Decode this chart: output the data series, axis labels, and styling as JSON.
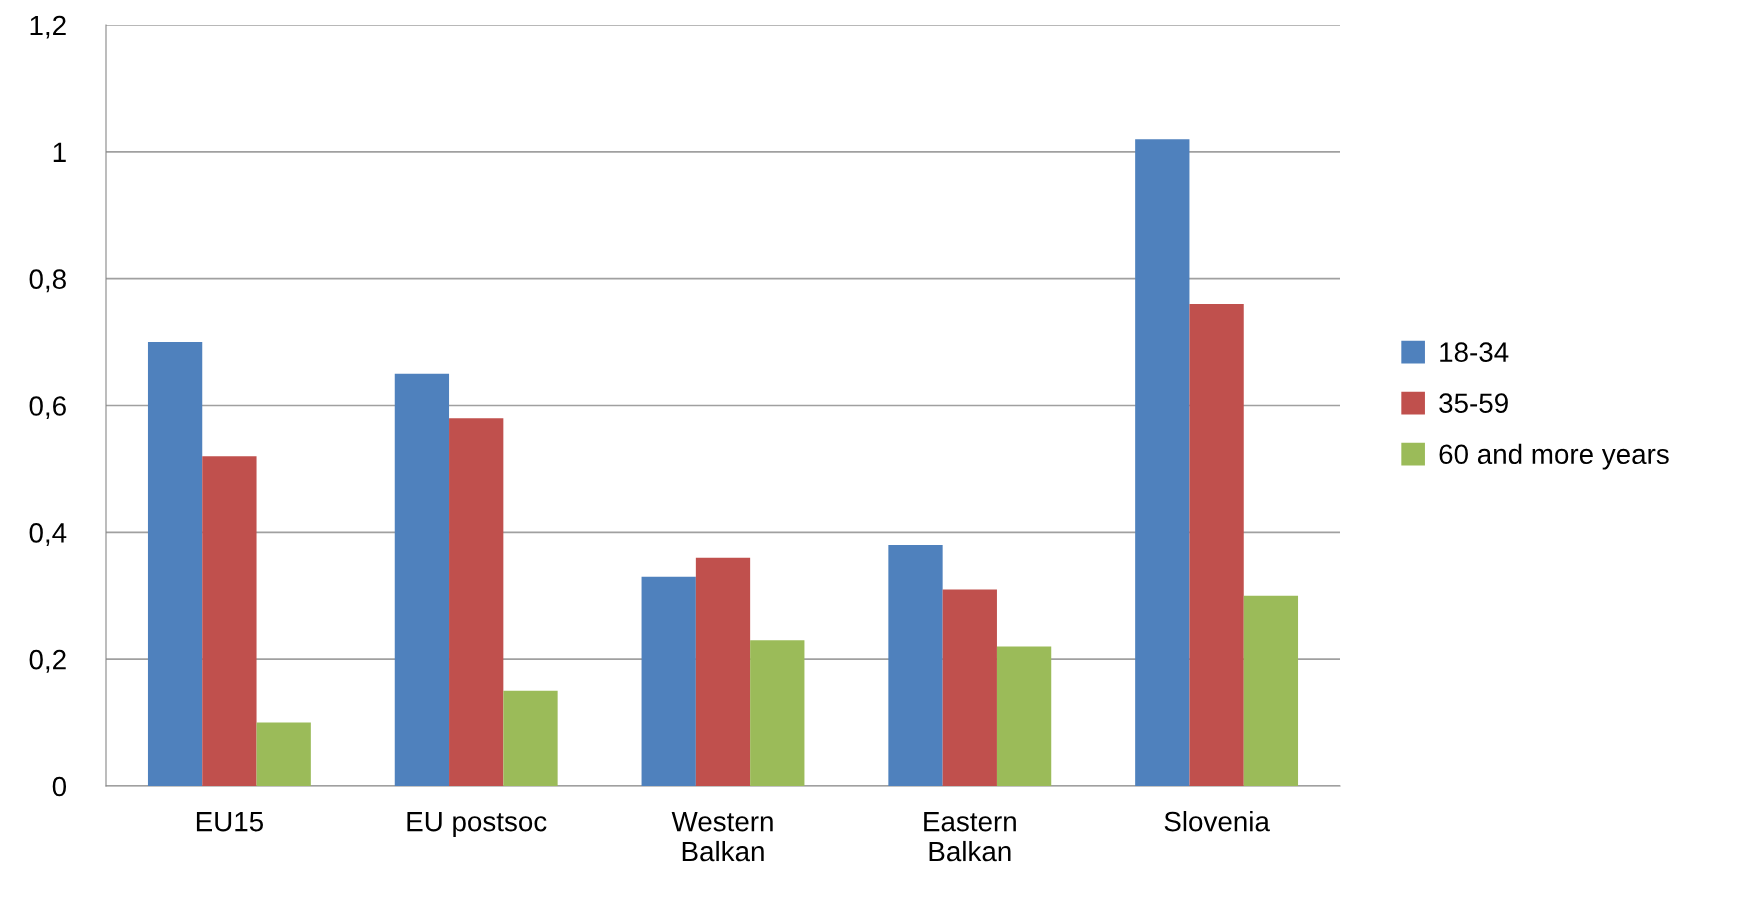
{
  "chart_data": {
    "type": "bar",
    "categories": [
      "EU15",
      "EU postsoc",
      "Western\nBalkan",
      "Eastern\nBalkan",
      "Slovenia"
    ],
    "series": [
      {
        "name": "18-34",
        "color": "#4f81bd",
        "values": [
          0.7,
          0.65,
          0.33,
          0.38,
          1.02
        ]
      },
      {
        "name": "35-59",
        "color": "#c0504d",
        "values": [
          0.52,
          0.58,
          0.36,
          0.31,
          0.76
        ]
      },
      {
        "name": "60 and more years",
        "color": "#9bbb59",
        "values": [
          0.1,
          0.15,
          0.23,
          0.22,
          0.3
        ]
      }
    ],
    "ylim": [
      0,
      1.2
    ],
    "yticks": [
      0,
      {
        "value": 0.2,
        "label": "0,2"
      },
      {
        "value": 0.4,
        "label": "0,4"
      },
      {
        "value": 0.6,
        "label": "0,6"
      },
      {
        "value": 0.8,
        "label": "0,8"
      },
      1,
      {
        "value": 1.2,
        "label": "1,2"
      }
    ],
    "grid": "y",
    "legend": "right"
  }
}
